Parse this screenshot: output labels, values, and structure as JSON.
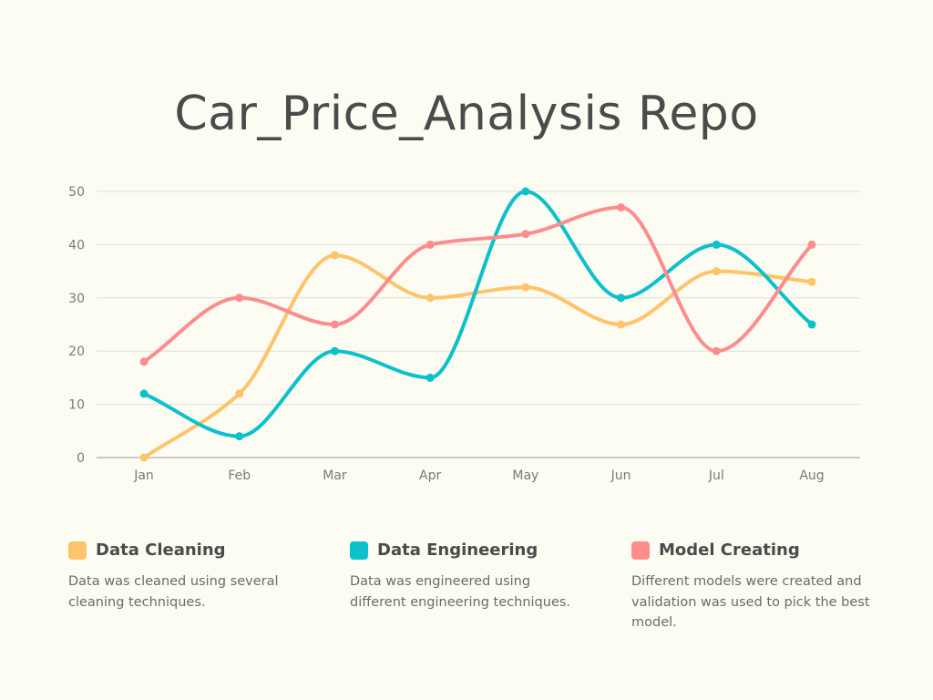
{
  "title": "Car_Price_Analysis Repo",
  "chart_data": {
    "type": "line",
    "smooth": true,
    "categories": [
      "Jan",
      "Feb",
      "Mar",
      "Apr",
      "May",
      "Jun",
      "Jul",
      "Aug"
    ],
    "ylim": [
      0,
      50
    ],
    "yticks": [
      0,
      10,
      20,
      30,
      40,
      50
    ],
    "grid": true,
    "series": [
      {
        "name": "Data Cleaning",
        "color": "#ffc46b",
        "values": [
          0,
          12,
          38,
          30,
          32,
          25,
          35,
          33
        ]
      },
      {
        "name": "Data Engineering",
        "color": "#0cc0cc",
        "values": [
          12,
          4,
          20,
          15,
          50,
          30,
          40,
          25
        ]
      },
      {
        "name": "Model Creating",
        "color": "#fd8d8d",
        "values": [
          18,
          30,
          25,
          40,
          42,
          47,
          20,
          40
        ]
      }
    ]
  },
  "legend": [
    {
      "name": "Data Cleaning",
      "color": "#ffc46b",
      "desc": "Data was cleaned using several cleaning techniques."
    },
    {
      "name": "Data Engineering",
      "color": "#0cc0cc",
      "desc": "Data was engineered using different engineering techniques."
    },
    {
      "name": "Model Creating",
      "color": "#fd8d8d",
      "desc": "Different models were created and validation was used to pick the best model."
    }
  ]
}
